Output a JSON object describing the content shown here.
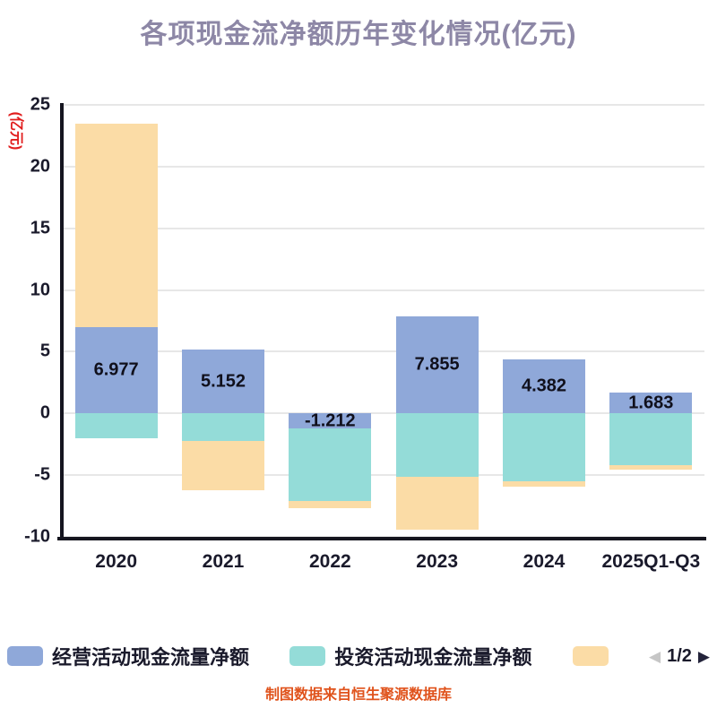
{
  "chart_data": {
    "type": "bar",
    "stacked": true,
    "title": "各项现金流净额历年变化情况(亿元)",
    "ylabel": "(亿元)",
    "xlabel": "",
    "categories": [
      "2020",
      "2021",
      "2022",
      "2023",
      "2024",
      "2025Q1-Q3"
    ],
    "yticks": [
      25,
      20,
      15,
      10,
      5,
      0,
      -5,
      -10
    ],
    "ylim": [
      -10,
      25
    ],
    "grid": true,
    "legend_position": "bottom",
    "series": [
      {
        "name": "经营活动现金流量净额",
        "color": "#8FA8D9",
        "values": [
          6.977,
          5.152,
          -1.212,
          7.855,
          4.382,
          1.683
        ],
        "data_labels": [
          "6.977",
          "5.152",
          "-1.212",
          "7.855",
          "4.382",
          "1.683"
        ]
      },
      {
        "name": "投资活动现金流量净额",
        "color": "#94DCD8",
        "values": [
          -2.0,
          -2.25,
          -5.85,
          -5.1,
          -5.5,
          -4.2
        ]
      },
      {
        "name": "",
        "color": "#FBDCA6",
        "values": [
          16.5,
          -4.0,
          -0.65,
          -4.35,
          -0.4,
          -0.35
        ]
      }
    ]
  },
  "legend": {
    "items": [
      {
        "label": "经营活动现金流量净额",
        "color": "#8FA8D9"
      },
      {
        "label": "投资活动现金流量净额",
        "color": "#94DCD8"
      },
      {
        "label": "",
        "color": "#FBDCA6"
      }
    ],
    "pagination": {
      "current": "1/2",
      "prev_icon": "left-arrow",
      "next_icon": "right-arrow"
    }
  },
  "caption": "制图数据来自恒生聚源数据库",
  "colors": {
    "title": "#8D87A6",
    "axis": "#15151F",
    "grid": "#E7E7E7",
    "tick_text": "#1A1A2B",
    "ylabel_text": "#E11D1D",
    "caption_text": "#E0531C",
    "pager_prev": "#C6C6C6",
    "pager_next": "#23233A"
  }
}
